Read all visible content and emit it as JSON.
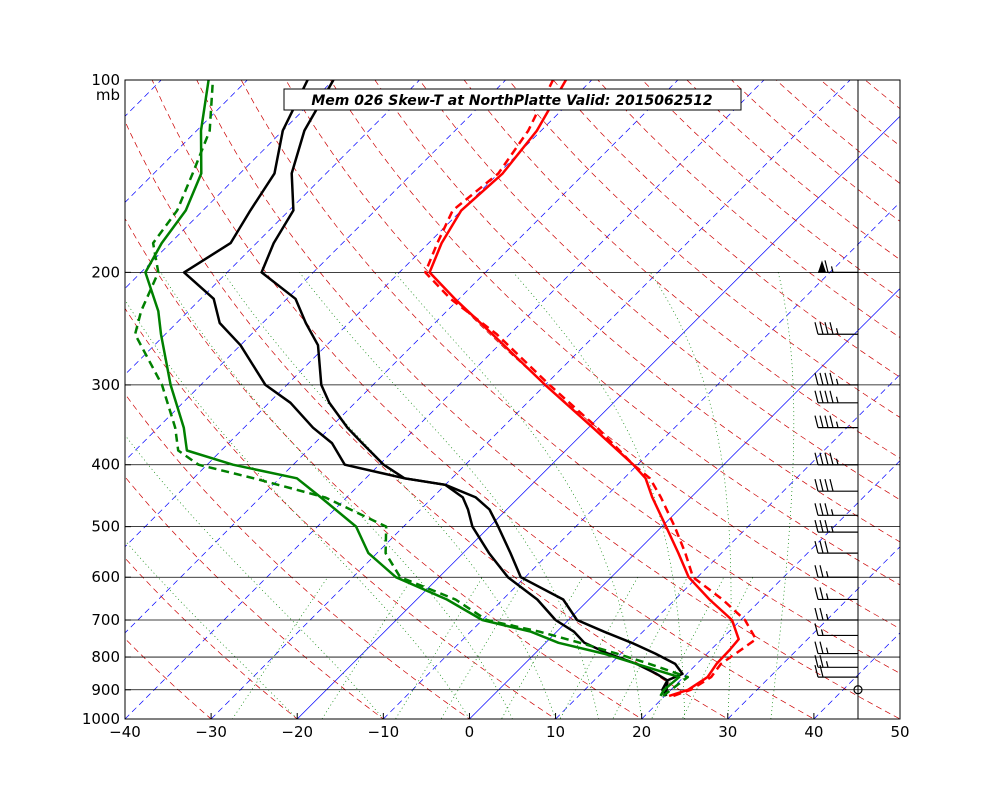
{
  "chart_data": {
    "type": "line",
    "title": "Mem 026  Skew-T at NorthPlatte   Valid: 2015062512",
    "y_unit": "mb",
    "xlim": [
      -40,
      50
    ],
    "ylim": [
      1000,
      100
    ],
    "y_scale": "log",
    "x_ticks": [
      "−40",
      "−30",
      "−20",
      "−10",
      "0",
      "10",
      "20",
      "30",
      "40",
      "50"
    ],
    "y_ticks": [
      "100",
      "200",
      "300",
      "400",
      "500",
      "600",
      "700",
      "800",
      "900",
      "1000"
    ],
    "grid": true,
    "colors": {
      "temperature": "#ff0000",
      "dewpoint": "#008000",
      "mean_profile": "#000000",
      "isotherm": "#0000ff",
      "dry_adiabat": "#cc0000",
      "mixing_ratio": "#008000",
      "moist_adiabat": "#008000"
    },
    "series": [
      {
        "p": [
          920,
          900,
          860,
          820,
          780,
          750,
          700,
          650,
          600,
          550,
          500,
          450,
          420,
          400,
          350,
          300,
          250,
          220,
          200,
          180,
          160,
          140,
          120,
          100
        ],
        "t": [
          20.5,
          22.0,
          22.8,
          22.3,
          22.2,
          22.0,
          19.0,
          14.0,
          9.0,
          5.0,
          0.5,
          -4.5,
          -7.5,
          -10.5,
          -19.5,
          -30.0,
          -42.0,
          -50.5,
          -56.5,
          -58.5,
          -60.0,
          -59.5,
          -60.5,
          -63.0
        ]
      },
      {
        "p": [
          920,
          900,
          860,
          820,
          780,
          750,
          700,
          650,
          600,
          550,
          500,
          450,
          420,
          400,
          350,
          300,
          250,
          220,
          200,
          180,
          160,
          140,
          120,
          100
        ],
        "t": [
          21.0,
          22.3,
          23.2,
          22.8,
          23.5,
          24.0,
          20.5,
          15.5,
          9.5,
          5.8,
          1.5,
          -3.5,
          -7.0,
          -10.5,
          -19.0,
          -29.5,
          -41.5,
          -51.0,
          -57.0,
          -59.0,
          -61.0,
          -60.0,
          -61.5,
          -64.5
        ]
      },
      {
        "p": [
          920,
          900,
          870,
          850,
          820,
          790,
          760,
          730,
          700,
          650,
          600,
          550,
          500,
          470,
          450,
          430,
          420,
          400,
          370,
          350,
          320,
          300,
          260,
          240,
          220,
          200,
          180,
          160,
          140,
          120,
          100
        ],
        "t": [
          20.0,
          19.5,
          18.5,
          16.5,
          13.0,
          8.5,
          4.5,
          2.0,
          -1.5,
          -6.0,
          -12.0,
          -17.0,
          -22.0,
          -24.5,
          -26.5,
          -30.0,
          -35.5,
          -39.5,
          -44.5,
          -48.0,
          -53.0,
          -56.0,
          -61.0,
          -65.0,
          -69.0,
          -76.0,
          -78.0,
          -79.5,
          -84.0,
          -87.5,
          -90.0
        ]
      },
      {
        "p": [
          920,
          900,
          870,
          850,
          820,
          790,
          760,
          730,
          700,
          650,
          600,
          550,
          500,
          470,
          450,
          430,
          420,
          400,
          370,
          350,
          320,
          300,
          260,
          240,
          220,
          200,
          180,
          160,
          140,
          120,
          100
        ],
        "t": [
          20.2,
          19.0,
          18.5,
          19.5,
          17.5,
          14.0,
          10.0,
          5.5,
          1.0,
          -3.0,
          -10.5,
          -14.5,
          -19.0,
          -22.0,
          -25.0,
          -30.0,
          -35.5,
          -44.0,
          -48.0,
          -52.0,
          -57.5,
          -62.5,
          -70.0,
          -75.0,
          -78.5,
          -85.0,
          -83.0,
          -84.5,
          -86.0,
          -90.0,
          -93.0
        ]
      },
      {
        "p": [
          920,
          900,
          860,
          820,
          790,
          760,
          730,
          700,
          650,
          600,
          550,
          500,
          450,
          420,
          400,
          380,
          350,
          300,
          250,
          230,
          200,
          180,
          160,
          140,
          120,
          100
        ],
        "t": [
          19.5,
          19.2,
          19.5,
          13.0,
          8.0,
          1.5,
          -3.0,
          -10.0,
          -16.5,
          -25.0,
          -31.0,
          -35.5,
          -43.0,
          -48.0,
          -57.0,
          -64.0,
          -67.0,
          -73.5,
          -80.5,
          -83.5,
          -89.5,
          -91.0,
          -92.0,
          -94.5,
          -99.5,
          -104.5
        ]
      },
      {
        "p": [
          920,
          900,
          860,
          820,
          790,
          760,
          730,
          700,
          650,
          600,
          550,
          500,
          450,
          420,
          400,
          380,
          350,
          300,
          250,
          230,
          200,
          180,
          160,
          140,
          120,
          100
        ],
        "t": [
          19.8,
          20.0,
          20.5,
          14.5,
          9.5,
          4.0,
          -2.0,
          -9.5,
          -15.5,
          -24.5,
          -29.0,
          -32.0,
          -42.5,
          -53.0,
          -61.0,
          -65.0,
          -68.0,
          -74.5,
          -83.5,
          -85.5,
          -88.0,
          -92.0,
          -93.0,
          -95.5,
          -98.5,
          -104.0
        ]
      }
    ],
    "wind_barbs": [
      {
        "p": 900,
        "speed_kt": 0
      },
      {
        "p": 860,
        "speed_kt": 20
      },
      {
        "p": 830,
        "speed_kt": 25
      },
      {
        "p": 790,
        "speed_kt": 25
      },
      {
        "p": 740,
        "speed_kt": 15
      },
      {
        "p": 700,
        "speed_kt": 25
      },
      {
        "p": 650,
        "speed_kt": 25
      },
      {
        "p": 600,
        "speed_kt": 25
      },
      {
        "p": 550,
        "speed_kt": 30
      },
      {
        "p": 510,
        "speed_kt": 35
      },
      {
        "p": 480,
        "speed_kt": 35
      },
      {
        "p": 440,
        "speed_kt": 40
      },
      {
        "p": 400,
        "speed_kt": 45
      },
      {
        "p": 350,
        "speed_kt": 45
      },
      {
        "p": 320,
        "speed_kt": 45
      },
      {
        "p": 300,
        "speed_kt": 45
      },
      {
        "p": 250,
        "speed_kt": 45
      },
      {
        "p": 200,
        "speed_kt": 65
      }
    ]
  }
}
